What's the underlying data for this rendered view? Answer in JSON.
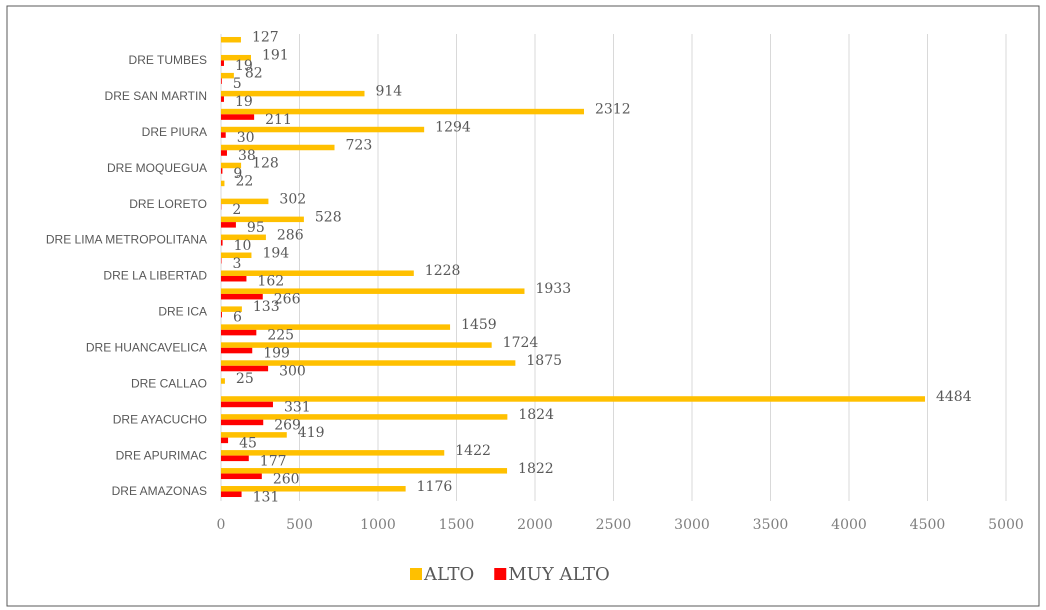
{
  "chart_data": {
    "type": "barh",
    "categories": [
      "DRE AMAZONAS",
      null,
      "DRE APURIMAC",
      null,
      "DRE AYACUCHO",
      null,
      "DRE CALLAO",
      null,
      "DRE HUANCAVELICA",
      null,
      "DRE ICA",
      null,
      "DRE LA LIBERTAD",
      null,
      "DRE LIMA METROPOLITANA",
      null,
      "DRE LORETO",
      null,
      "DRE MOQUEGUA",
      null,
      "DRE PIURA",
      null,
      "DRE SAN MARTIN",
      null,
      "DRE TUMBES",
      null
    ],
    "series": [
      {
        "name": "ALTO",
        "color": "#FFC000",
        "values": [
          1176,
          1822,
          1422,
          419,
          1824,
          4484,
          25,
          1875,
          1724,
          1459,
          133,
          1933,
          1228,
          194,
          286,
          528,
          302,
          22,
          128,
          723,
          1294,
          2312,
          914,
          82,
          191,
          127
        ]
      },
      {
        "name": "MUY ALTO",
        "color": "#FF0000",
        "values": [
          131,
          260,
          177,
          45,
          269,
          331,
          null,
          300,
          199,
          225,
          6,
          266,
          162,
          3,
          10,
          95,
          2,
          null,
          9,
          38,
          30,
          211,
          19,
          5,
          19,
          null
        ]
      }
    ],
    "xlim": [
      0,
      5000
    ],
    "xticks": [
      0,
      500,
      1000,
      1500,
      2000,
      2500,
      3000,
      3500,
      4000,
      4500,
      5000
    ],
    "grid": true,
    "legend": "bottom"
  }
}
